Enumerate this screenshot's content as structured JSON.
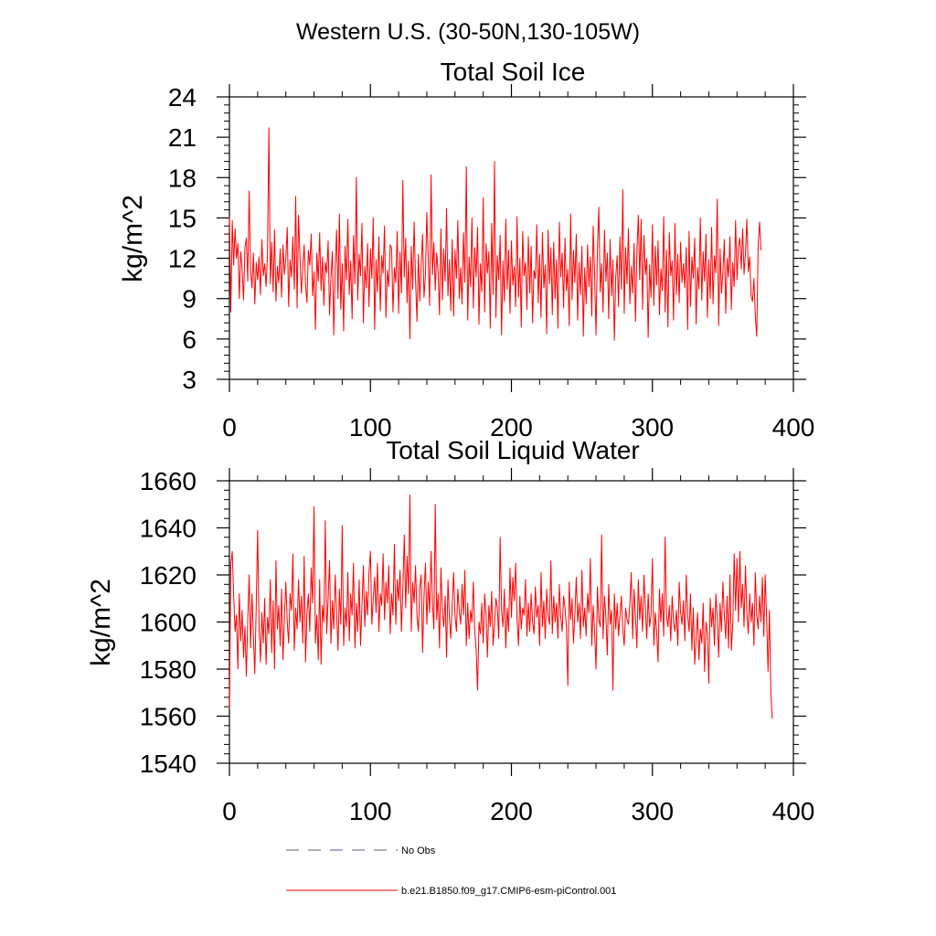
{
  "figure_title": "Western U.S. (30-50N,130-105W)",
  "legend": {
    "obs_label": "No Obs",
    "obs_color": "#5a5a9a",
    "model_label": "b.e21.B1850.f09_g17.CMIP6-esm-piControl.001",
    "model_color": "#ff0000"
  },
  "chart_data": [
    {
      "type": "line",
      "title": "Total Soil Ice",
      "xlabel": "",
      "ylabel": "kg/m^2",
      "xlim": [
        0,
        400
      ],
      "ylim": [
        3,
        24
      ],
      "xticks": [
        0,
        100,
        200,
        300,
        400
      ],
      "yticks": [
        3,
        6,
        9,
        12,
        15,
        18,
        21,
        24
      ],
      "series": [
        {
          "name": "b.e21.B1850.f09_g17.CMIP6-esm-piControl.001",
          "color": "#ff0000",
          "x_start": 0,
          "x_step": 1,
          "values": [
            15.1,
            8.0,
            14.8,
            11.5,
            14.2,
            12.0,
            13.1,
            9.0,
            12.5,
            11.2,
            8.9,
            12.8,
            13.5,
            10.3,
            17.0,
            11.1,
            9.8,
            12.4,
            8.6,
            11.7,
            10.4,
            12.1,
            9.3,
            13.4,
            10.7,
            11.6,
            9.9,
            12.3,
            21.7,
            10.1,
            13.2,
            9.5,
            14.1,
            8.8,
            11.4,
            10.2,
            12.7,
            9.1,
            13.0,
            10.8,
            12.0,
            14.3,
            8.4,
            11.9,
            10.6,
            13.6,
            9.7,
            16.6,
            8.3,
            15.2,
            12.2,
            9.4,
            11.3,
            13.0,
            10.0,
            8.7,
            12.6,
            11.5,
            13.8,
            9.2,
            11.0,
            6.7,
            12.4,
            10.3,
            13.9,
            9.6,
            12.1,
            8.5,
            11.7,
            10.9,
            13.3,
            7.8,
            10.6,
            12.5,
            6.3,
            11.2,
            14.1,
            9.0,
            15.3,
            8.2,
            11.6,
            6.6,
            12.9,
            10.4,
            14.9,
            9.3,
            11.8,
            7.5,
            13.7,
            10.1,
            18.0,
            8.9,
            12.3,
            10.7,
            14.6,
            7.2,
            11.4,
            9.8,
            13.1,
            8.4,
            12.7,
            10.5,
            15.0,
            6.7,
            11.9,
            9.5,
            13.6,
            8.1,
            12.2,
            10.9,
            14.4,
            7.6,
            11.1,
            9.9,
            13.0,
            12.8,
            8.0,
            11.3,
            10.2,
            14.0,
            7.9,
            12.5,
            9.4,
            17.8,
            10.6,
            13.5,
            8.7,
            11.8,
            6.0,
            12.9,
            9.7,
            14.7,
            10.4,
            7.3,
            12.3,
            8.8,
            11.5,
            13.8,
            9.1,
            10.7,
            15.4,
            12.0,
            8.5,
            18.2,
            10.8,
            13.2,
            9.6,
            12.4,
            11.0,
            7.8,
            14.2,
            8.9,
            12.7,
            10.3,
            15.7,
            9.2,
            11.9,
            8.1,
            13.4,
            7.7,
            12.6,
            10.5,
            14.8,
            9.0,
            11.3,
            8.6,
            13.9,
            10.2,
            18.8,
            7.4,
            12.1,
            9.9,
            15.0,
            8.3,
            12.8,
            10.6,
            14.3,
            7.1,
            11.6,
            9.5,
            16.5,
            8.0,
            13.1,
            10.9,
            12.5,
            6.8,
            14.6,
            9.3,
            19.2,
            7.6,
            12.2,
            10.4,
            13.7,
            6.3,
            11.8,
            8.8,
            14.9,
            9.7,
            12.6,
            7.9,
            13.3,
            10.0,
            11.4,
            8.4,
            15.1,
            9.1,
            12.0,
            6.9,
            14.0,
            10.7,
            11.7,
            8.2,
            13.6,
            9.4,
            12.9,
            7.2,
            11.1,
            10.5,
            14.5,
            8.7,
            12.3,
            7.6,
            13.9,
            9.8,
            11.5,
            6.4,
            14.1,
            10.1,
            12.8,
            7.8,
            13.2,
            9.0,
            11.9,
            6.8,
            14.7,
            10.6,
            12.4,
            8.3,
            13.5,
            9.6,
            11.2,
            7.0,
            15.3,
            8.9,
            12.6,
            10.2,
            13.8,
            7.4,
            11.7,
            9.3,
            12.9,
            6.2,
            11.3,
            8.6,
            13.0,
            9.9,
            12.1,
            7.7,
            14.4,
            10.8,
            6.3,
            12.7,
            15.8,
            9.5,
            11.6,
            8.0,
            14.1,
            10.3,
            12.4,
            7.5,
            13.4,
            9.2,
            11.9,
            5.9,
            10.6,
            12.2,
            8.4,
            13.6,
            9.7,
            17.1,
            7.9,
            12.8,
            10.1,
            14.2,
            8.6,
            11.4,
            9.4,
            13.1,
            7.3,
            12.5,
            15.2,
            10.4,
            14.9,
            8.2,
            13.7,
            10.8,
            12.0,
            6.1,
            11.5,
            9.1,
            14.5,
            8.5,
            12.9,
            10.0,
            13.3,
            7.8,
            11.2,
            9.6,
            15.1,
            8.0,
            12.6,
            6.9,
            13.9,
            10.7,
            11.8,
            7.4,
            14.6,
            9.3,
            12.3,
            8.7,
            13.2,
            10.2,
            11.6,
            9.8,
            12.8,
            6.7,
            14.0,
            8.4,
            12.1,
            10.5,
            13.5,
            7.1,
            11.3,
            9.7,
            15.0,
            8.9,
            12.5,
            10.3,
            13.8,
            7.6,
            11.9,
            9.0,
            14.3,
            8.6,
            12.2,
            10.9,
            16.4,
            7.0,
            12.7,
            9.4,
            11.0,
            13.4,
            7.9,
            12.0,
            10.6,
            13.6,
            8.2,
            11.7,
            9.9,
            14.8,
            10.4,
            12.9,
            13.5,
            11.2,
            14.2,
            10.8,
            12.4,
            14.9,
            11.0,
            12.1,
            9.2,
            8.8,
            10.5,
            7.7,
            6.2,
            13.0,
            14.7,
            12.6
          ]
        }
      ]
    },
    {
      "type": "line",
      "title": "Total Soil Liquid Water",
      "xlabel": "",
      "ylabel": "kg/m^2",
      "xlim": [
        0,
        400
      ],
      "ylim": [
        1540,
        1660
      ],
      "xticks": [
        0,
        100,
        200,
        300,
        400
      ],
      "yticks": [
        1540,
        1560,
        1580,
        1600,
        1620,
        1640,
        1660
      ],
      "series": [
        {
          "name": "b.e21.B1850.f09_g17.CMIP6-esm-piControl.001",
          "color": "#ff0000",
          "x_start": 0,
          "x_step": 1,
          "values": [
            1563,
            1625,
            1630,
            1611,
            1596,
            1603,
            1580,
            1612,
            1592,
            1605,
            1585,
            1598,
            1577,
            1601,
            1620,
            1589,
            1612,
            1594,
            1578,
            1607,
            1639,
            1599,
            1583,
            1604,
            1591,
            1610,
            1582,
            1602,
            1595,
            1618,
            1587,
            1609,
            1580,
            1626,
            1597,
            1607,
            1590,
            1614,
            1584,
            1602,
            1617,
            1600,
            1591,
            1612,
            1605,
            1629,
            1588,
            1606,
            1597,
            1618,
            1600,
            1611,
            1591,
            1628,
            1583,
            1604,
            1612,
            1596,
            1623,
            1608,
            1649,
            1591,
            1603,
            1584,
            1618,
            1582,
            1607,
            1600,
            1643,
            1595,
            1610,
            1626,
            1591,
            1609,
            1597,
            1620,
            1604,
            1588,
            1614,
            1599,
            1641,
            1590,
            1606,
            1598,
            1621,
            1592,
            1612,
            1603,
            1625,
            1589,
            1608,
            1596,
            1618,
            1590,
            1607,
            1624,
            1598,
            1613,
            1603,
            1621,
            1630,
            1599,
            1610,
            1619,
            1604,
            1625,
            1596,
            1612,
            1607,
            1629,
            1601,
            1617,
            1608,
            1624,
            1595,
            1612,
            1603,
            1633,
            1599,
            1618,
            1609,
            1622,
            1596,
            1614,
            1637,
            1606,
            1628,
            1612,
            1654,
            1596,
            1617,
            1608,
            1624,
            1603,
            1596,
            1615,
            1620,
            1587,
            1611,
            1625,
            1599,
            1617,
            1604,
            1630,
            1608,
            1597,
            1650,
            1601,
            1612,
            1589,
            1623,
            1605,
            1598,
            1611,
            1585,
            1618,
            1602,
            1593,
            1607,
            1621,
            1603,
            1596,
            1614,
            1605,
            1599,
            1616,
            1603,
            1622,
            1590,
            1608,
            1593,
            1605,
            1600,
            1617,
            1596,
            1588,
            1571,
            1600,
            1595,
            1608,
            1591,
            1612,
            1603,
            1585,
            1607,
            1598,
            1613,
            1590,
            1599,
            1610,
            1606,
            1593,
            1636,
            1605,
            1598,
            1614,
            1589,
            1606,
            1596,
            1623,
            1602,
            1619,
            1609,
            1625,
            1601,
            1590,
            1611,
            1597,
            1606,
            1603,
            1618,
            1594,
            1608,
            1596,
            1612,
            1600,
            1595,
            1615,
            1602,
            1607,
            1590,
            1621,
            1598,
            1609,
            1593,
            1614,
            1603,
            1599,
            1626,
            1595,
            1611,
            1600,
            1608,
            1593,
            1616,
            1602,
            1596,
            1611,
            1606,
            1598,
            1573,
            1617,
            1601,
            1610,
            1591,
            1603,
            1619,
            1600,
            1608,
            1593,
            1622,
            1598,
            1606,
            1594,
            1612,
            1604,
            1627,
            1590,
            1607,
            1596,
            1580,
            1615,
            1601,
            1598,
            1637,
            1593,
            1611,
            1602,
            1586,
            1616,
            1599,
            1605,
            1571,
            1612,
            1597,
            1608,
            1594,
            1603,
            1611,
            1597,
            1590,
            1606,
            1601,
            1599,
            1608,
            1621,
            1593,
            1614,
            1602,
            1589,
            1618,
            1601,
            1611,
            1596,
            1620,
            1606,
            1593,
            1612,
            1598,
            1603,
            1627,
            1590,
            1604,
            1596,
            1583,
            1614,
            1600,
            1612,
            1594,
            1636,
            1603,
            1598,
            1607,
            1592,
            1611,
            1600,
            1596,
            1605,
            1590,
            1617,
            1604,
            1599,
            1609,
            1592,
            1620,
            1603,
            1596,
            1612,
            1588,
            1606,
            1582,
            1593,
            1604,
            1584,
            1597,
            1591,
            1608,
            1579,
            1600,
            1595,
            1574,
            1610,
            1598,
            1606,
            1590,
            1612,
            1601,
            1585,
            1608,
            1596,
            1617,
            1603,
            1593,
            1611,
            1589,
            1620,
            1588,
            1599,
            1629,
            1605,
            1627,
            1600,
            1630,
            1606,
            1616,
            1598,
            1624,
            1604,
            1595,
            1612,
            1600,
            1608,
            1590,
            1621,
            1603,
            1597,
            1611,
            1600,
            1619,
            1594,
            1620,
            1602,
            1579,
            1605,
            1570,
            1559
          ]
        }
      ]
    }
  ]
}
